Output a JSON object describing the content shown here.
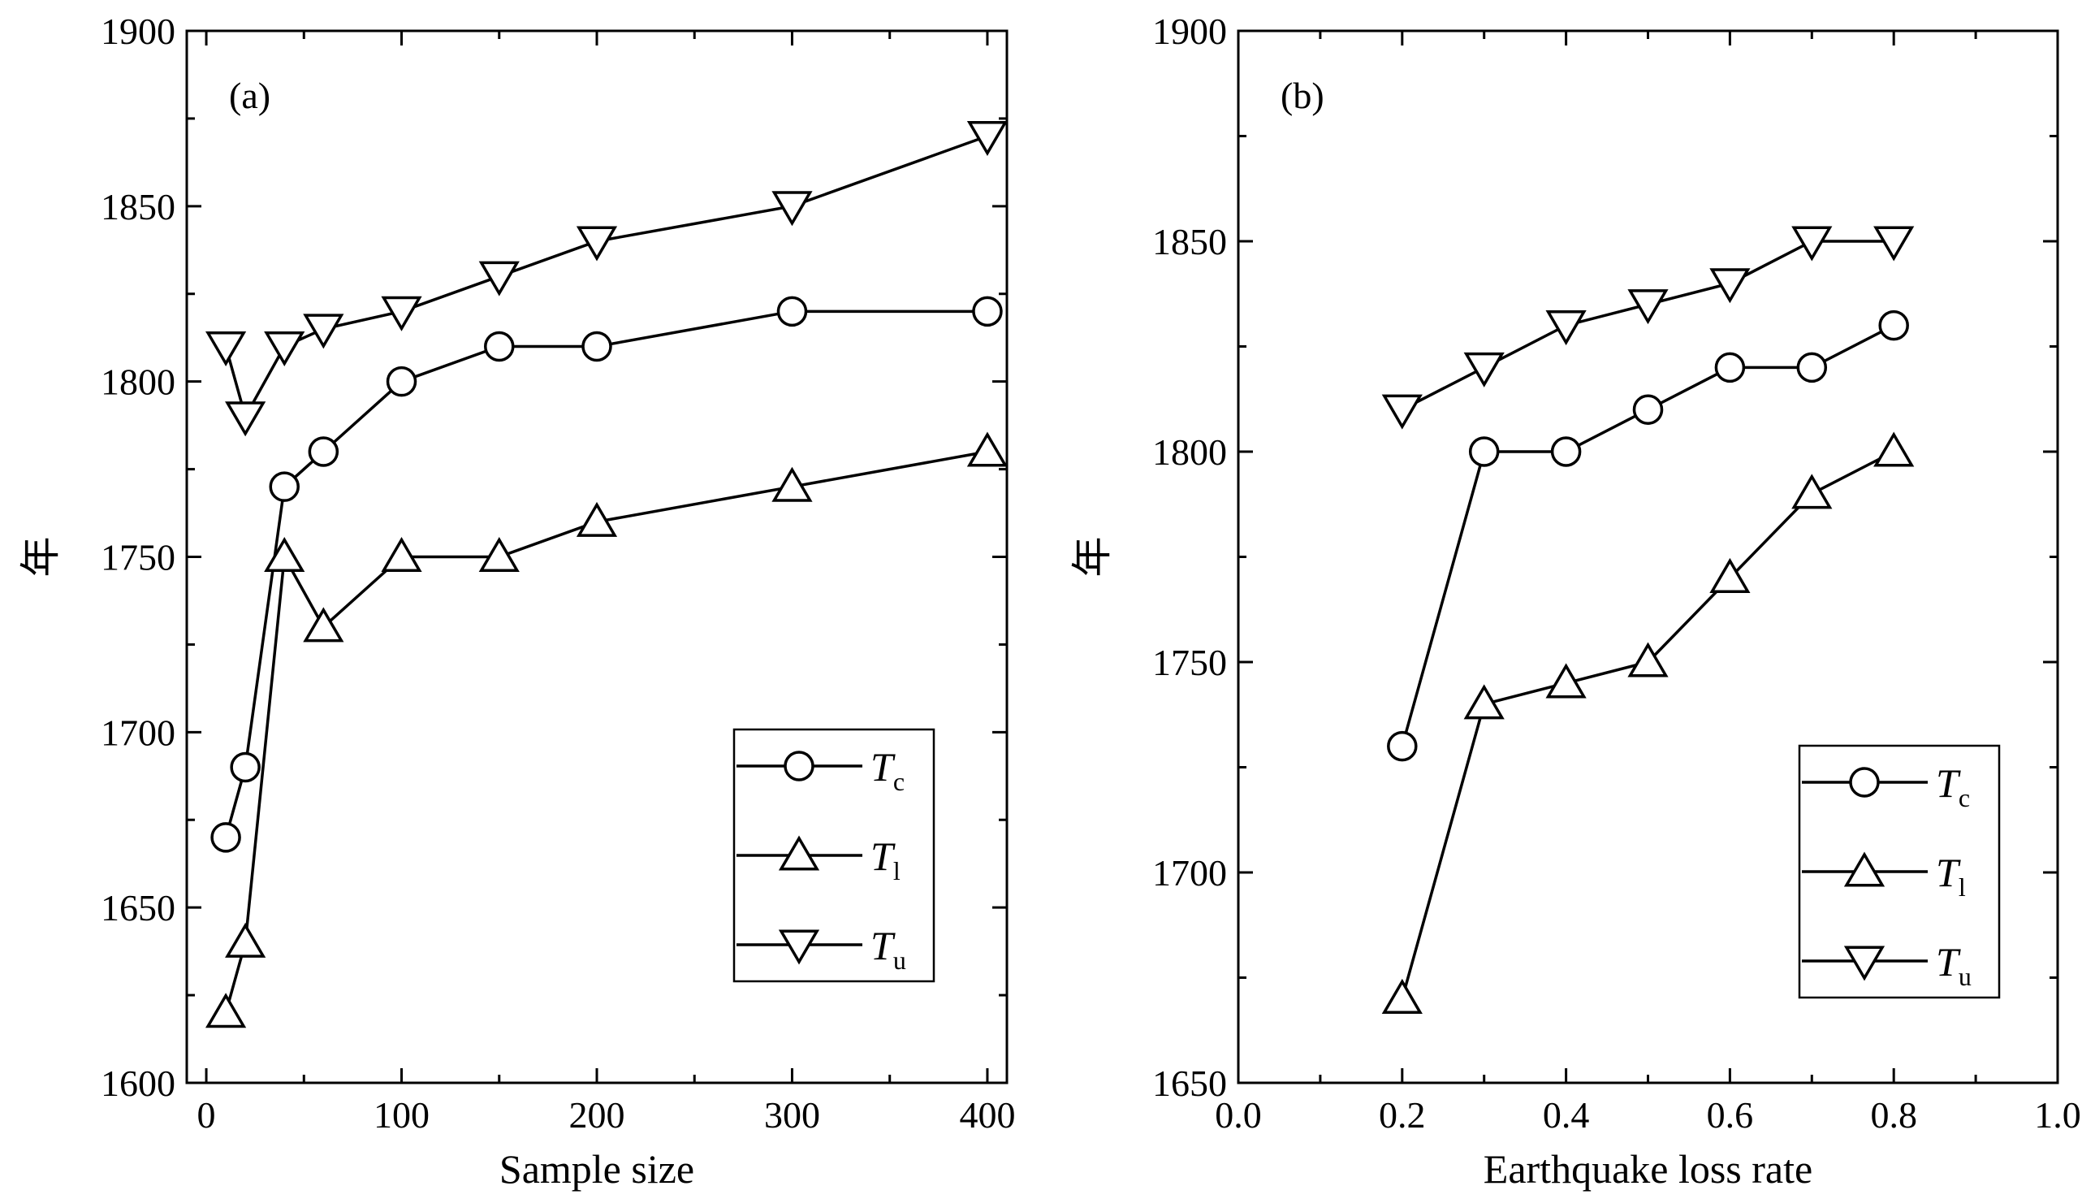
{
  "chart_data": [
    {
      "panel": "(a)",
      "type": "line",
      "xlabel": "Sample size",
      "ylabel": "年",
      "xlim": [
        -10,
        410
      ],
      "ylim": [
        1600,
        1900
      ],
      "xticks": [
        0,
        100,
        200,
        300,
        400
      ],
      "yticks": [
        1600,
        1650,
        1700,
        1750,
        1800,
        1850,
        1900
      ],
      "legend_position": "lower-right",
      "series": [
        {
          "name": "T",
          "sub": "c",
          "marker": "circle",
          "x": [
            10,
            20,
            40,
            60,
            100,
            150,
            200,
            300,
            400
          ],
          "y": [
            1670,
            1690,
            1770,
            1780,
            1800,
            1810,
            1810,
            1820,
            1820
          ]
        },
        {
          "name": "T",
          "sub": "l",
          "marker": "triangle-up",
          "x": [
            10,
            20,
            40,
            60,
            100,
            150,
            200,
            300,
            400
          ],
          "y": [
            1620,
            1640,
            1750,
            1730,
            1750,
            1750,
            1760,
            1770,
            1780
          ]
        },
        {
          "name": "T",
          "sub": "u",
          "marker": "triangle-down",
          "x": [
            10,
            20,
            40,
            60,
            100,
            150,
            200,
            300,
            400
          ],
          "y": [
            1810,
            1790,
            1810,
            1815,
            1820,
            1830,
            1840,
            1850,
            1870
          ]
        }
      ]
    },
    {
      "panel": "(b)",
      "type": "line",
      "xlabel": "Earthquake loss rate",
      "ylabel": "年",
      "xlim": [
        0.0,
        1.0
      ],
      "ylim": [
        1650,
        1900
      ],
      "xticks": [
        "0.0",
        "0.2",
        "0.4",
        "0.6",
        "0.8",
        "1.0"
      ],
      "yticks": [
        1650,
        1700,
        1750,
        1800,
        1850,
        1900
      ],
      "legend_position": "lower-right",
      "series": [
        {
          "name": "T",
          "sub": "c",
          "marker": "circle",
          "x": [
            0.2,
            0.3,
            0.4,
            0.5,
            0.6,
            0.7,
            0.8
          ],
          "y": [
            1730,
            1800,
            1800,
            1810,
            1820,
            1820,
            1830
          ]
        },
        {
          "name": "T",
          "sub": "l",
          "marker": "triangle-up",
          "x": [
            0.2,
            0.3,
            0.4,
            0.5,
            0.6,
            0.7,
            0.8
          ],
          "y": [
            1670,
            1740,
            1745,
            1750,
            1770,
            1790,
            1800
          ]
        },
        {
          "name": "T",
          "sub": "u",
          "marker": "triangle-down",
          "x": [
            0.2,
            0.3,
            0.4,
            0.5,
            0.6,
            0.7,
            0.8
          ],
          "y": [
            1810,
            1820,
            1830,
            1835,
            1840,
            1850,
            1850
          ]
        }
      ]
    }
  ]
}
